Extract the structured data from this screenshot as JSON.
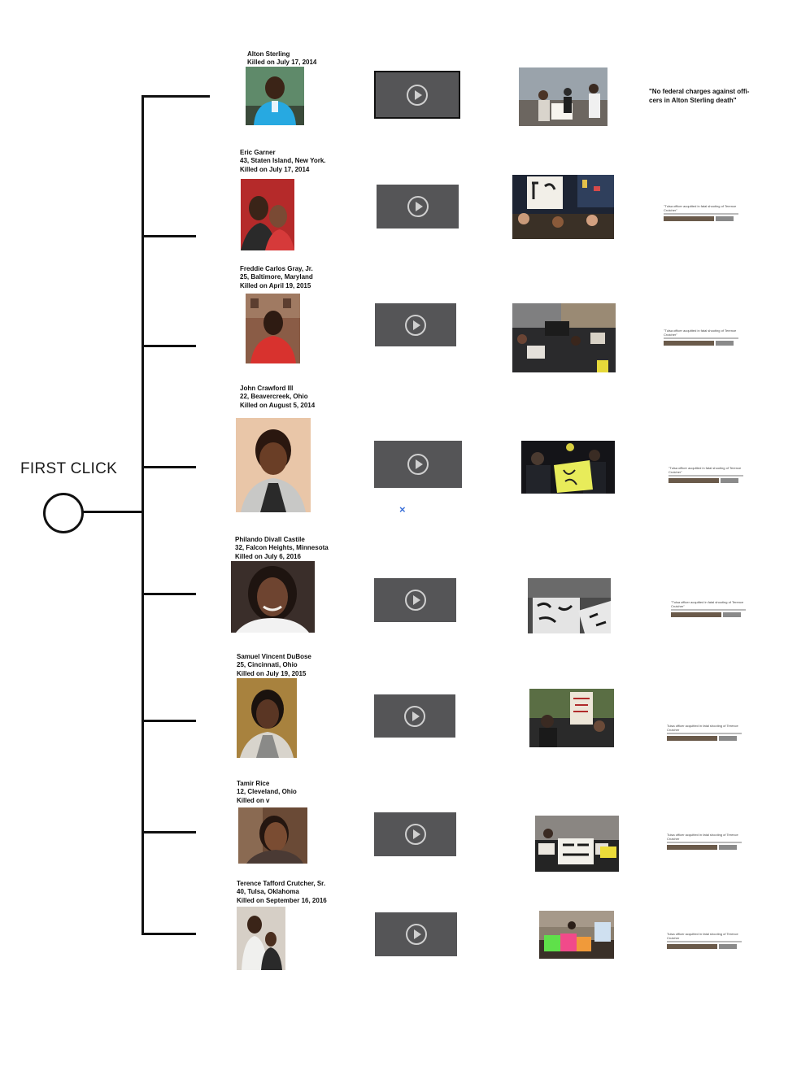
{
  "title": "FIRST CLICK",
  "close_glyph": "×",
  "rows": [
    {
      "lines": [
        "Alton Sterling",
        "Killed on July 17, 2014"
      ],
      "quote": "\"No federal charges against offi-cers in Alton Sterling death\""
    },
    {
      "lines": [
        "Eric Garner",
        "43, Staten Island, New York.",
        "Killed on July 17, 2014"
      ],
      "mini": "\"Tulsa officer acquitted in fatal shooting of Terence Crutcher\""
    },
    {
      "lines": [
        "Freddie Carlos Gray, Jr.",
        "25, Baltimore, Maryland",
        "Killed on April 19, 2015"
      ],
      "mini": "\"Tulsa officer acquitted in fatal shooting of Terence Crutcher\""
    },
    {
      "lines": [
        "John Crawford III",
        "22,  Beavercreek, Ohio",
        "Killed on August 5, 2014"
      ],
      "mini": "\"Tulsa officer acquitted in fatal shooting of Terence Crutcher\""
    },
    {
      "lines": [
        "Philando Divall Castile",
        "32,  Falcon Heights, Minnesota",
        "Killed on July 6, 2016"
      ],
      "mini": "\"Tulsa officer acquitted in fatal shooting of Terence Crutcher\""
    },
    {
      "lines": [
        "Samuel Vincent DuBose",
        "25, Cincinnati, Ohio",
        "Killed on July 19, 2015"
      ],
      "mini": "Tulsa officer acquitted in fatal shooting of Terence Crutcher"
    },
    {
      "lines": [
        "Tamir Rice",
        "12, Cleveland, Ohio",
        "Killed on v"
      ],
      "mini": "Tulsa officer acquitted in fatal shooting of Terence Crutcher"
    },
    {
      "lines": [
        "Terence Tafford Crutcher, Sr.",
        "40,  Tulsa, Oklahoma",
        "Killed on September 16, 2016"
      ],
      "mini": "Tulsa officer acquitted in fatal shooting of Terence Crutcher"
    }
  ]
}
